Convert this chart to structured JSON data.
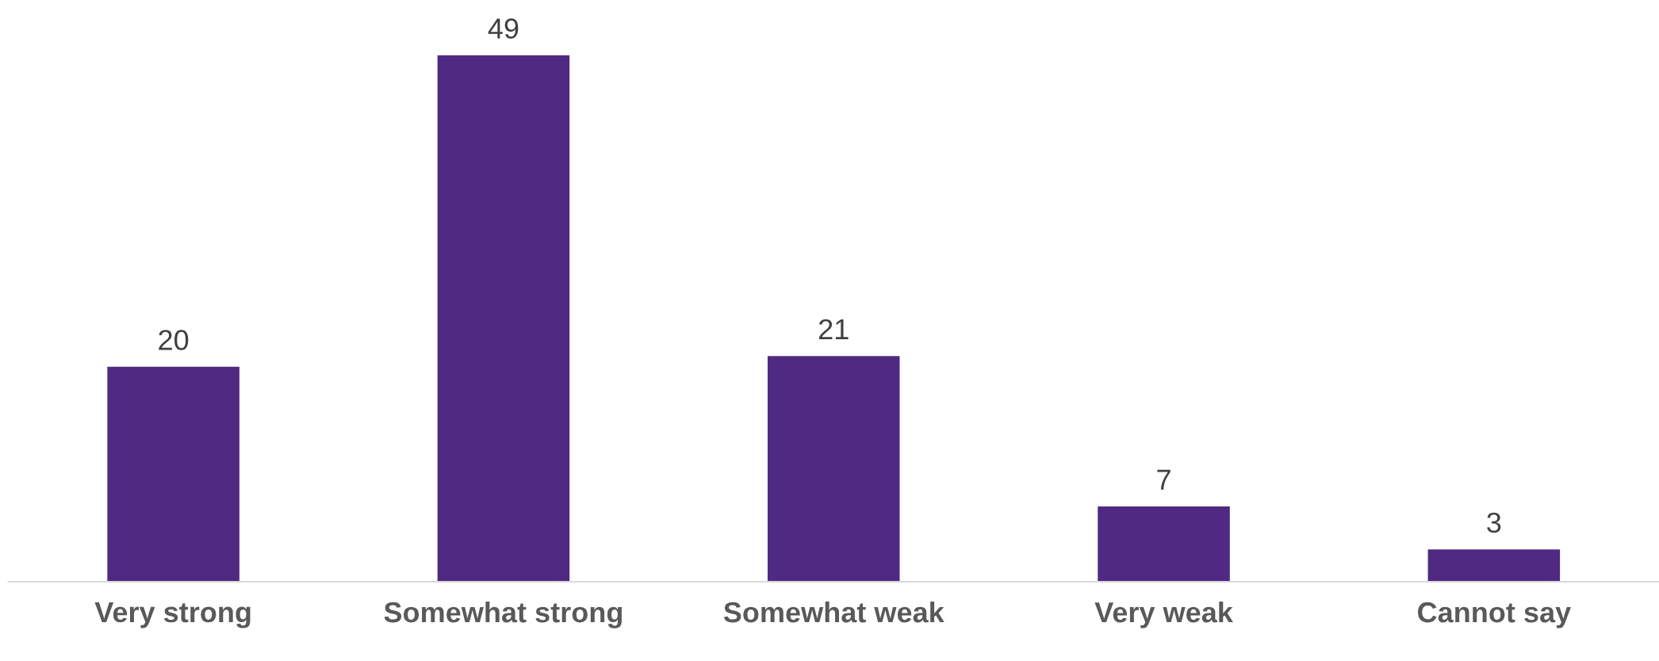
{
  "chart_data": {
    "type": "bar",
    "categories": [
      "Very strong",
      "Somewhat strong",
      "Somewhat weak",
      "Very weak",
      "Cannot say"
    ],
    "values": [
      20,
      49,
      21,
      7,
      3
    ],
    "color": "#4f2982",
    "data_labels": true,
    "grid": false,
    "legend": false
  }
}
